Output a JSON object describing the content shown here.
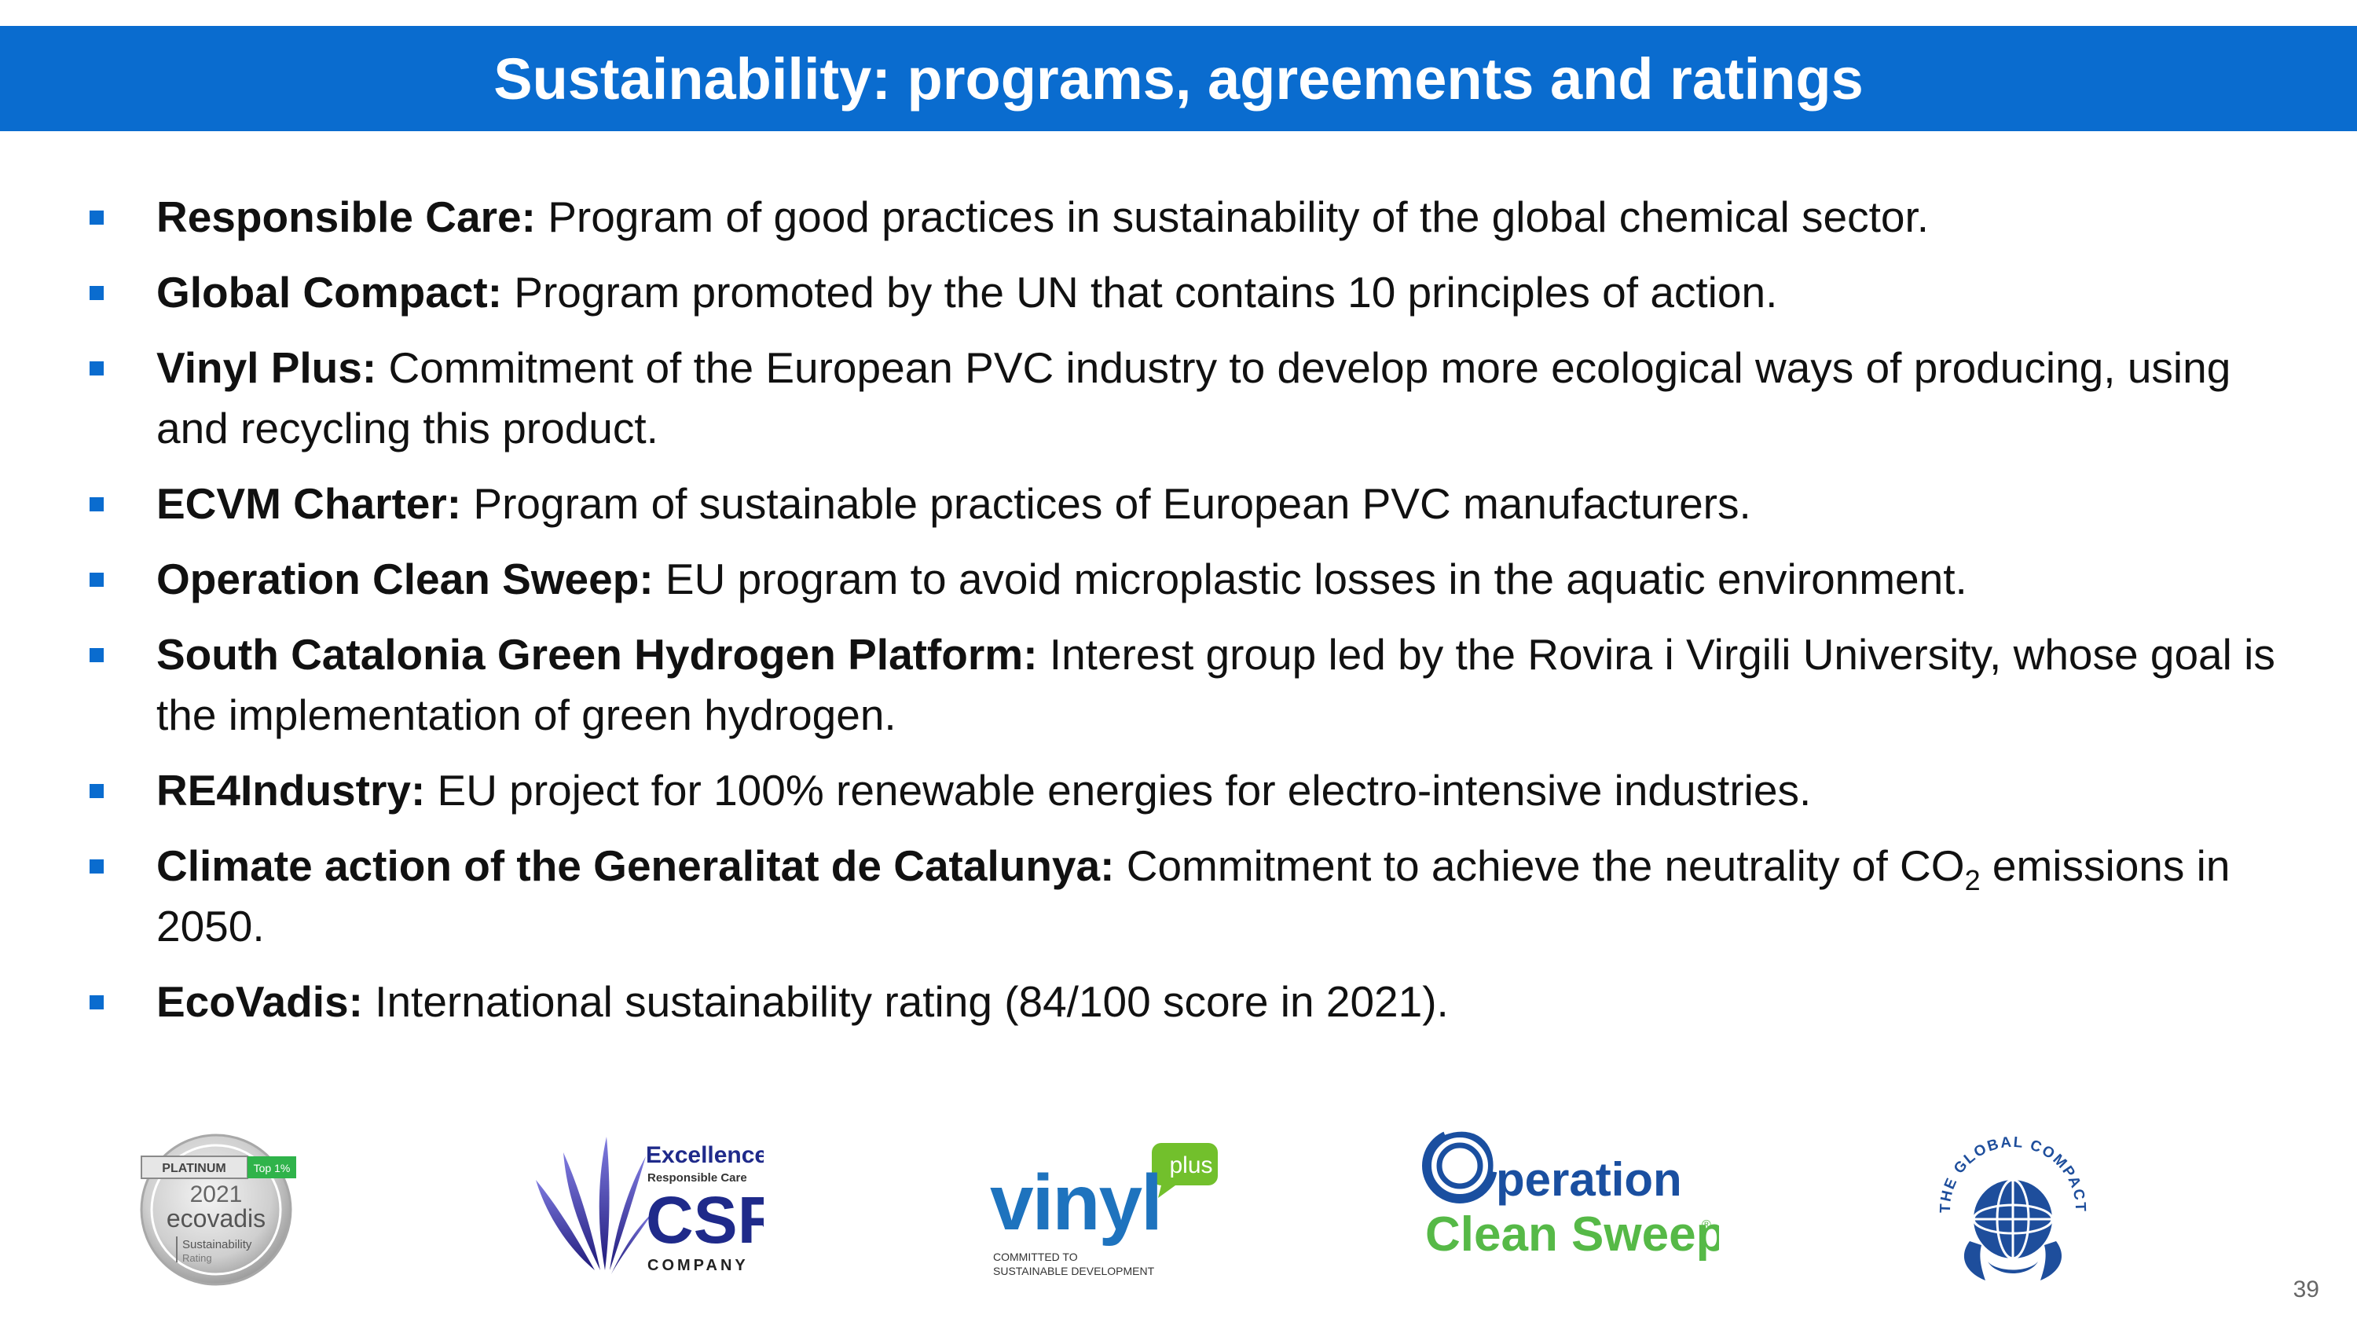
{
  "slide": {
    "title": "Sustainability: programs, agreements and ratings",
    "page_number": "39",
    "accent_color": "#0a6ccf"
  },
  "bullets": [
    {
      "term": "Responsible Care:",
      "text": " Program of good practices in sustainability of the global chemical sector."
    },
    {
      "term": "Global Compact:",
      "text": " Program promoted by the UN that contains 10 principles of action."
    },
    {
      "term": "Vinyl Plus:",
      "text": " Commitment of the European PVC industry to develop more ecological ways of producing, using and recycling this product."
    },
    {
      "term": "ECVM Charter:",
      "text": " Program of sustainable practices of European PVC manufacturers."
    },
    {
      "term": "Operation Clean Sweep:",
      "text": " EU program to avoid microplastic losses in the aquatic environment."
    },
    {
      "term": "South Catalonia Green Hydrogen Platform:",
      "text": " Interest group led by the Rovira i Virgili University, whose goal is the implementation of green hydrogen."
    },
    {
      "term": "RE4Industry:",
      "text": " EU project for 100% renewable energies for electro-intensive industries."
    },
    {
      "term": "Climate action of the Generalitat de Catalunya:",
      "text": " Commitment to achieve the neutrality of CO",
      "sub": "2",
      "text_after": " emissions in 2050."
    },
    {
      "term": "EcoVadis:",
      "text": " International sustainability rating (84/100 score in 2021)."
    }
  ],
  "logos": {
    "ecovadis": {
      "tier": "PLATINUM",
      "badge": "Top 1%",
      "year": "2021",
      "name": "ecovadis",
      "line1": "Sustainability",
      "line2": "Rating"
    },
    "csr": {
      "line1": "Excellence",
      "line2": "Responsible Care",
      "mark": "CSR",
      "line3": "COMPANY"
    },
    "vinyl": {
      "name": "vinyl",
      "plus": "plus",
      "line1": "COMMITTED TO",
      "line2": "SUSTAINABLE DEVELOPMENT"
    },
    "ocs": {
      "line1": "peration",
      "line2": "Clean Sweep",
      "reg": "®"
    },
    "global_compact": {
      "text": "THE GLOBAL COMPACT"
    }
  }
}
